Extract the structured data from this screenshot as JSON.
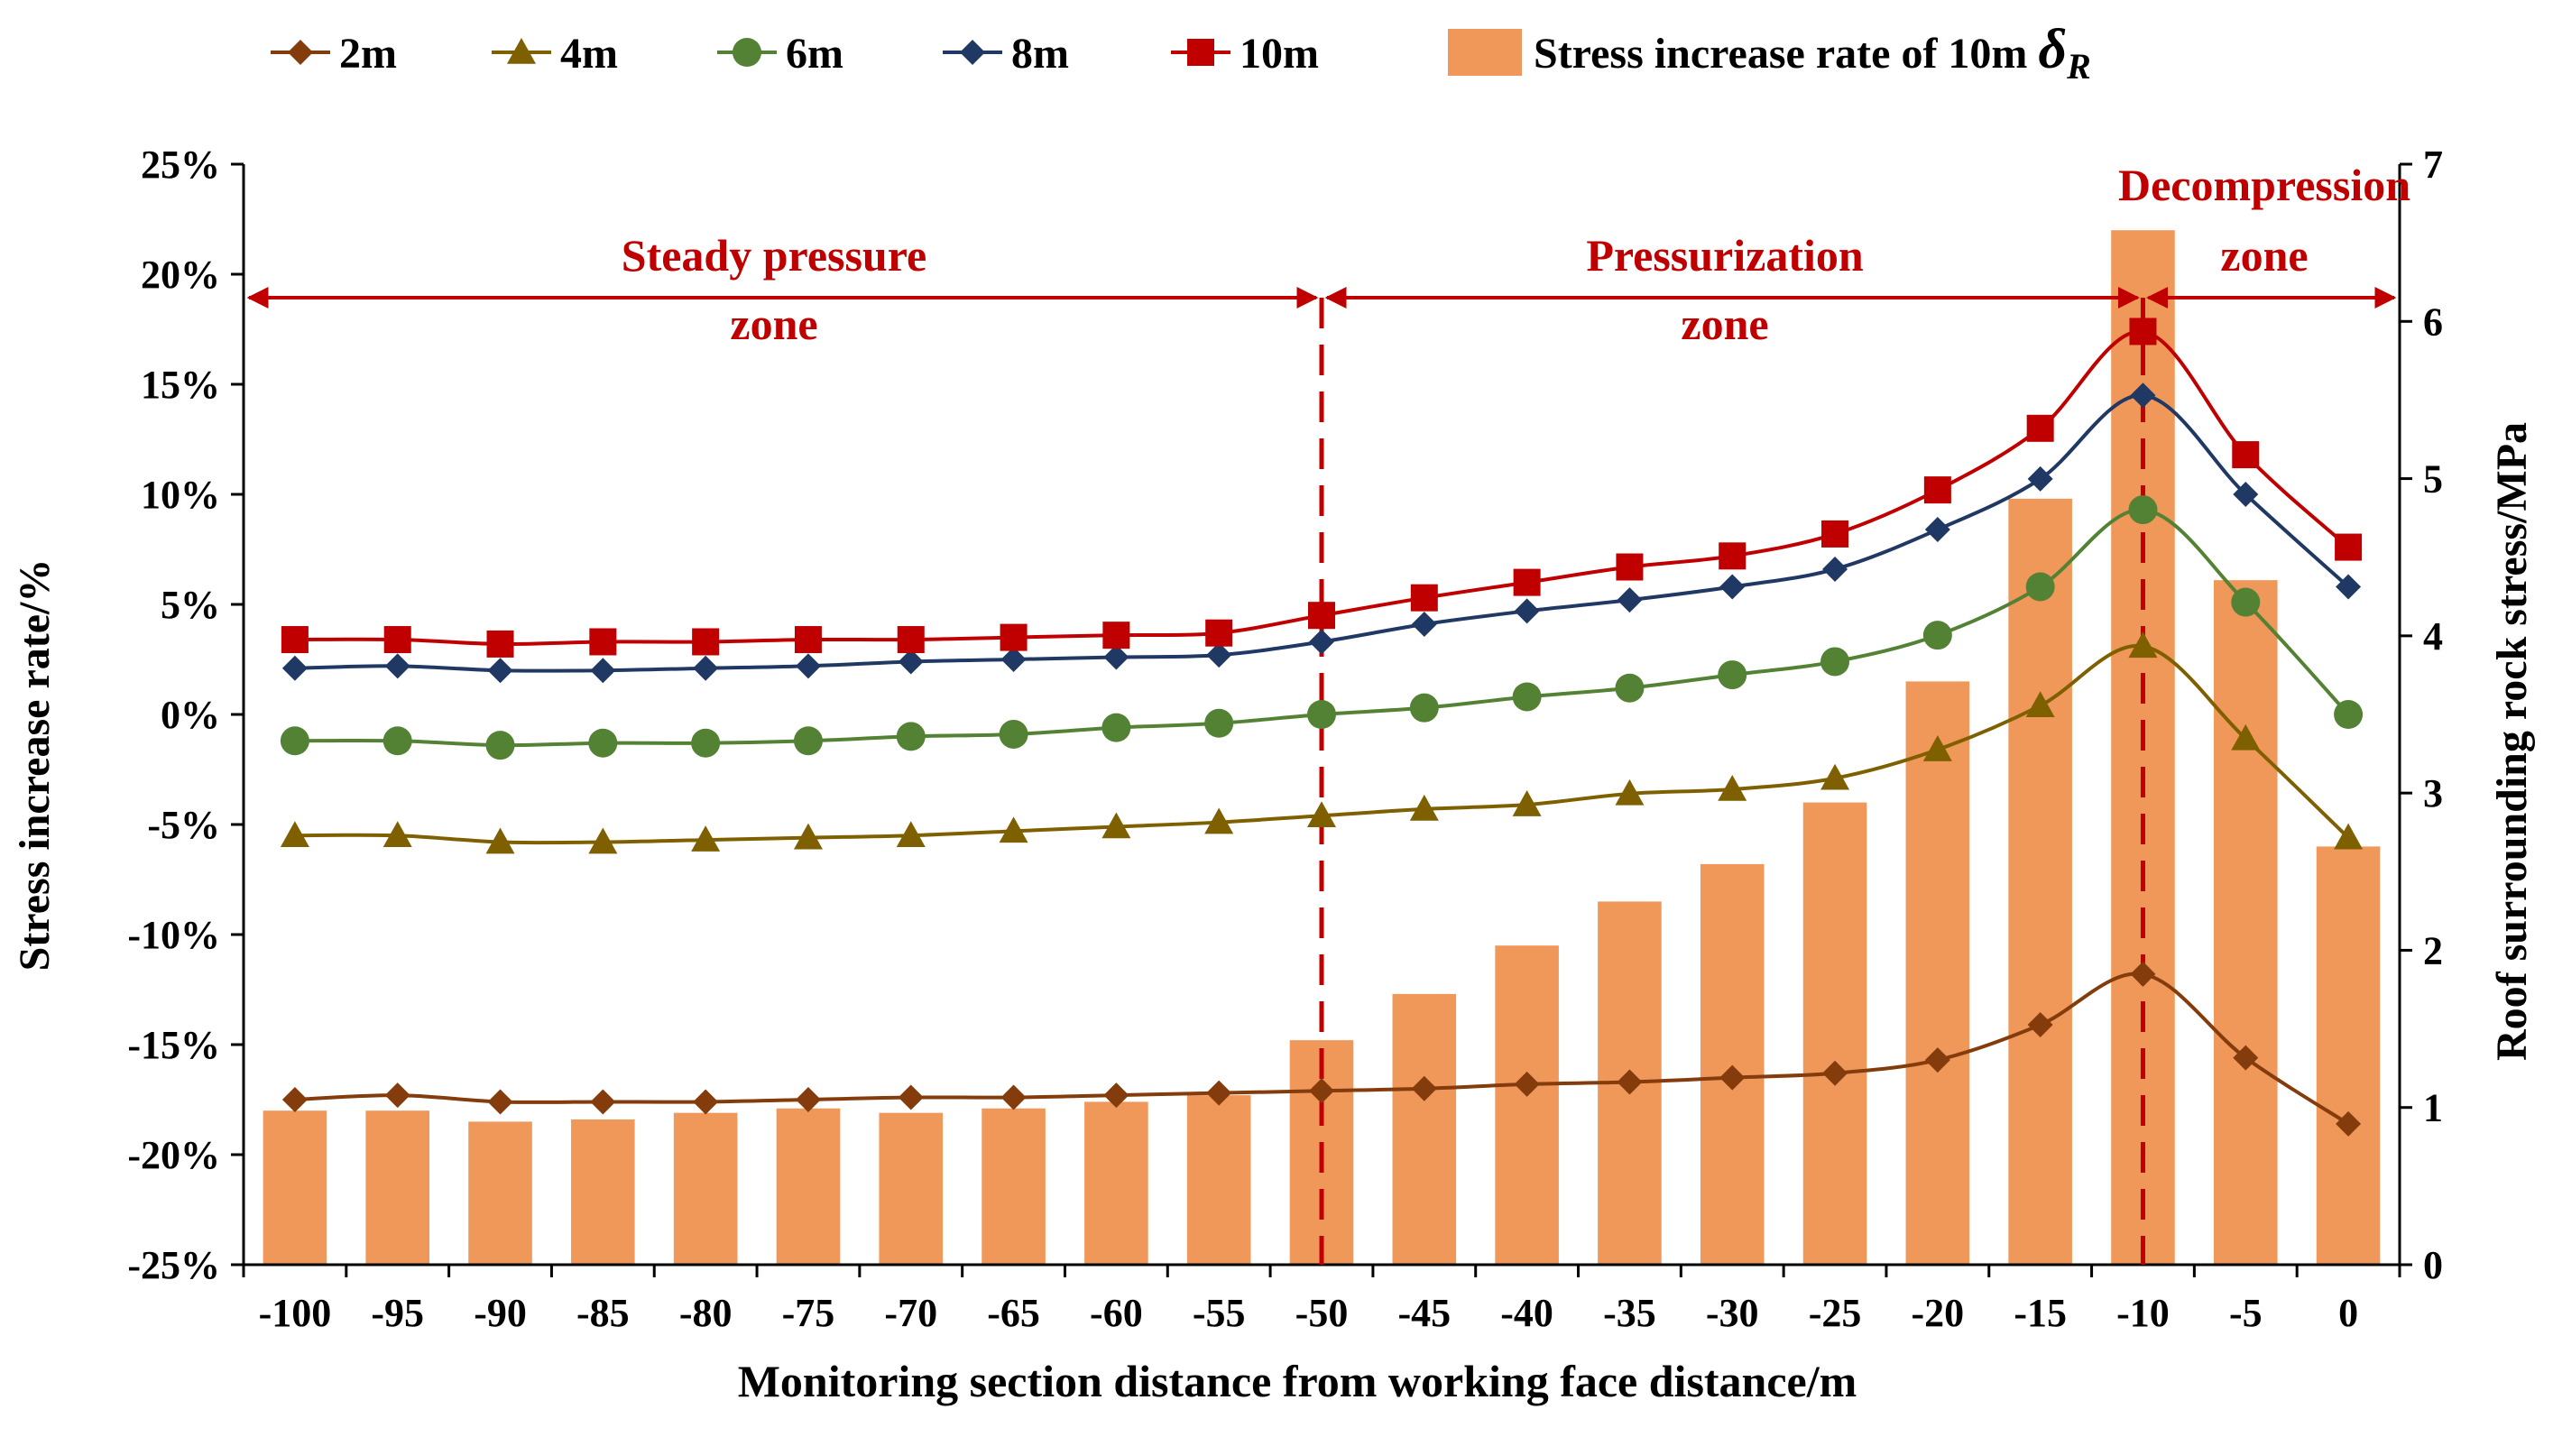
{
  "chart_data": {
    "type": "bar+line",
    "title": "",
    "xlabel": "Monitoring section distance from working face distance/m",
    "ylabel_left": "Stress increase rate/%",
    "ylabel_right": "Roof surrounding rock stress/MPa",
    "categories": [
      "-100",
      "-95",
      "-90",
      "-85",
      "-80",
      "-75",
      "-70",
      "-65",
      "-60",
      "-55",
      "-50",
      "-45",
      "-40",
      "-35",
      "-30",
      "-25",
      "-20",
      "-15",
      "-10",
      "-5",
      "0"
    ],
    "left_axis": {
      "min": -25,
      "max": 25,
      "step": 5,
      "tick_labels": [
        "-25%",
        "-20%",
        "-15%",
        "-10%",
        "-5%",
        "0%",
        "5%",
        "10%",
        "15%",
        "20%",
        "25%"
      ]
    },
    "right_axis": {
      "min": 0,
      "max": 7,
      "step": 1,
      "tick_labels": [
        "0",
        "1",
        "2",
        "3",
        "4",
        "5",
        "6",
        "7"
      ]
    },
    "bars": {
      "name": "Stress increase rate of 10m",
      "symbol": "δ",
      "subscript": "R",
      "color": "#f0975a",
      "values": [
        -18.0,
        -18.0,
        -18.5,
        -18.4,
        -18.1,
        -17.9,
        -18.1,
        -17.9,
        -17.6,
        -17.3,
        -14.8,
        -12.7,
        -10.5,
        -8.5,
        -6.8,
        -4.0,
        1.5,
        9.8,
        22.0,
        6.1,
        -6.0
      ]
    },
    "series": [
      {
        "name": "2m",
        "marker": "diamond",
        "color": "#843c0c",
        "values": [
          -17.5,
          -17.3,
          -17.6,
          -17.6,
          -17.6,
          -17.5,
          -17.4,
          -17.4,
          -17.3,
          -17.2,
          -17.1,
          -17.0,
          -16.8,
          -16.7,
          -16.5,
          -16.3,
          -15.7,
          -14.1,
          -11.8,
          -15.6,
          -18.6
        ]
      },
      {
        "name": "4m",
        "marker": "triangle",
        "color": "#7f6000",
        "values": [
          -5.5,
          -5.5,
          -5.8,
          -5.8,
          -5.7,
          -5.6,
          -5.5,
          -5.3,
          -5.1,
          -4.9,
          -4.6,
          -4.3,
          -4.1,
          -3.6,
          -3.4,
          -2.9,
          -1.6,
          0.4,
          3.1,
          -1.1,
          -5.6
        ]
      },
      {
        "name": "6m",
        "marker": "circle",
        "color": "#548235",
        "values": [
          -1.2,
          -1.2,
          -1.4,
          -1.3,
          -1.3,
          -1.2,
          -1.0,
          -0.9,
          -0.6,
          -0.4,
          0.0,
          0.3,
          0.8,
          1.2,
          1.8,
          2.4,
          3.6,
          5.8,
          9.3,
          5.1,
          0.0
        ]
      },
      {
        "name": "8m",
        "marker": "diamond",
        "color": "#203864",
        "values": [
          2.1,
          2.2,
          2.0,
          2.0,
          2.1,
          2.2,
          2.4,
          2.5,
          2.6,
          2.7,
          3.3,
          4.1,
          4.7,
          5.2,
          5.8,
          6.6,
          8.4,
          10.7,
          14.5,
          10.0,
          5.8
        ]
      },
      {
        "name": "10m",
        "marker": "square",
        "color": "#c00000",
        "values": [
          3.4,
          3.4,
          3.2,
          3.3,
          3.3,
          3.4,
          3.4,
          3.5,
          3.6,
          3.7,
          4.5,
          5.3,
          6.0,
          6.7,
          7.2,
          8.2,
          10.2,
          13.0,
          17.4,
          11.8,
          7.6
        ]
      }
    ],
    "zones": [
      {
        "line1": "Steady pressure",
        "line2": "zone"
      },
      {
        "line1": "Pressurization",
        "line2": "zone"
      },
      {
        "line1": "Decompression",
        "line2": "zone"
      }
    ],
    "zone_boundaries": [
      -50,
      -10
    ],
    "zone_color": "#c00000",
    "legend_position": "top"
  }
}
